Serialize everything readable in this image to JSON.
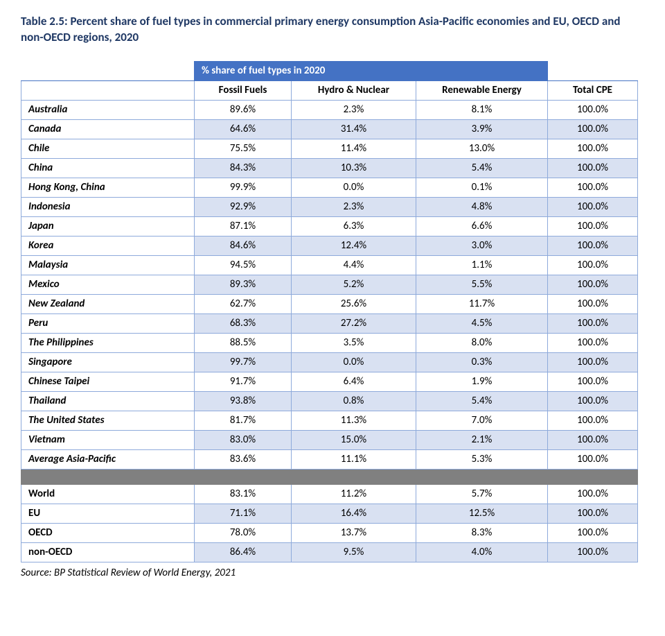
{
  "title": "Table 2.5: Percent share of fuel types in commercial primary energy consumption Asia-Pacific economies and EU, OECD and non-OECD regions, 2020",
  "header_band": "% share of fuel types in 2020",
  "columns": {
    "fossil": "Fossil Fuels",
    "hydro": "Hydro & Nuclear",
    "renew": "Renewable Energy",
    "total": "Total CPE"
  },
  "rows_main": [
    {
      "name": "Australia",
      "ff": "89.6%",
      "hn": "2.3%",
      "re": "8.1%",
      "tot": "100.0%"
    },
    {
      "name": "Canada",
      "ff": "64.6%",
      "hn": "31.4%",
      "re": "3.9%",
      "tot": "100.0%"
    },
    {
      "name": "Chile",
      "ff": "75.5%",
      "hn": "11.4%",
      "re": "13.0%",
      "tot": "100.0%"
    },
    {
      "name": "China",
      "ff": "84.3%",
      "hn": "10.3%",
      "re": "5.4%",
      "tot": "100.0%"
    },
    {
      "name": "Hong Kong, China",
      "ff": "99.9%",
      "hn": "0.0%",
      "re": "0.1%",
      "tot": "100.0%"
    },
    {
      "name": "Indonesia",
      "ff": "92.9%",
      "hn": "2.3%",
      "re": "4.8%",
      "tot": "100.0%"
    },
    {
      "name": "Japan",
      "ff": "87.1%",
      "hn": "6.3%",
      "re": "6.6%",
      "tot": "100.0%"
    },
    {
      "name": "Korea",
      "ff": "84.6%",
      "hn": "12.4%",
      "re": "3.0%",
      "tot": "100.0%"
    },
    {
      "name": "Malaysia",
      "ff": "94.5%",
      "hn": "4.4%",
      "re": "1.1%",
      "tot": "100.0%"
    },
    {
      "name": "Mexico",
      "ff": "89.3%",
      "hn": "5.2%",
      "re": "5.5%",
      "tot": "100.0%"
    },
    {
      "name": "New Zealand",
      "ff": "62.7%",
      "hn": "25.6%",
      "re": "11.7%",
      "tot": "100.0%"
    },
    {
      "name": "Peru",
      "ff": "68.3%",
      "hn": "27.2%",
      "re": "4.5%",
      "tot": "100.0%"
    },
    {
      "name": "The Philippines",
      "ff": "88.5%",
      "hn": "3.5%",
      "re": "8.0%",
      "tot": "100.0%"
    },
    {
      "name": "Singapore",
      "ff": "99.7%",
      "hn": "0.0%",
      "re": "0.3%",
      "tot": "100.0%"
    },
    {
      "name": "Chinese Taipei",
      "ff": "91.7%",
      "hn": "6.4%",
      "re": "1.9%",
      "tot": "100.0%"
    },
    {
      "name": "Thailand",
      "ff": "93.8%",
      "hn": "0.8%",
      "re": "5.4%",
      "tot": "100.0%"
    },
    {
      "name": "The United States",
      "ff": "81.7%",
      "hn": "11.3%",
      "re": "7.0%",
      "tot": "100.0%"
    },
    {
      "name": "Vietnam",
      "ff": "83.0%",
      "hn": "15.0%",
      "re": "2.1%",
      "tot": "100.0%"
    },
    {
      "name": "Average Asia-Pacific",
      "ff": "83.6%",
      "hn": "11.1%",
      "re": "5.3%",
      "tot": "100.0%"
    }
  ],
  "rows_regions": [
    {
      "name": "World",
      "ff": "83.1%",
      "hn": "11.2%",
      "re": "5.7%",
      "tot": "100.0%"
    },
    {
      "name": "EU",
      "ff": "71.1%",
      "hn": "16.4%",
      "re": "12.5%",
      "tot": "100.0%"
    },
    {
      "name": "OECD",
      "ff": "78.0%",
      "hn": "13.7%",
      "re": "8.3%",
      "tot": "100.0%"
    },
    {
      "name": "non-OECD",
      "ff": "86.4%",
      "hn": "9.5%",
      "re": "4.0%",
      "tot": "100.0%"
    }
  ],
  "source": "Source: BP Statistical Review of World Energy, 2021",
  "style": {
    "header_bg": "#4472c4",
    "header_fg": "#ffffff",
    "border_color": "#8eaadb",
    "band_even": "#d9e1f2",
    "band_odd": "#ffffff",
    "separator_bg": "#808080",
    "title_color": "#1f3864",
    "font_family": "Calibri",
    "title_fontsize_pt": 13,
    "cell_fontsize_pt": 11
  }
}
